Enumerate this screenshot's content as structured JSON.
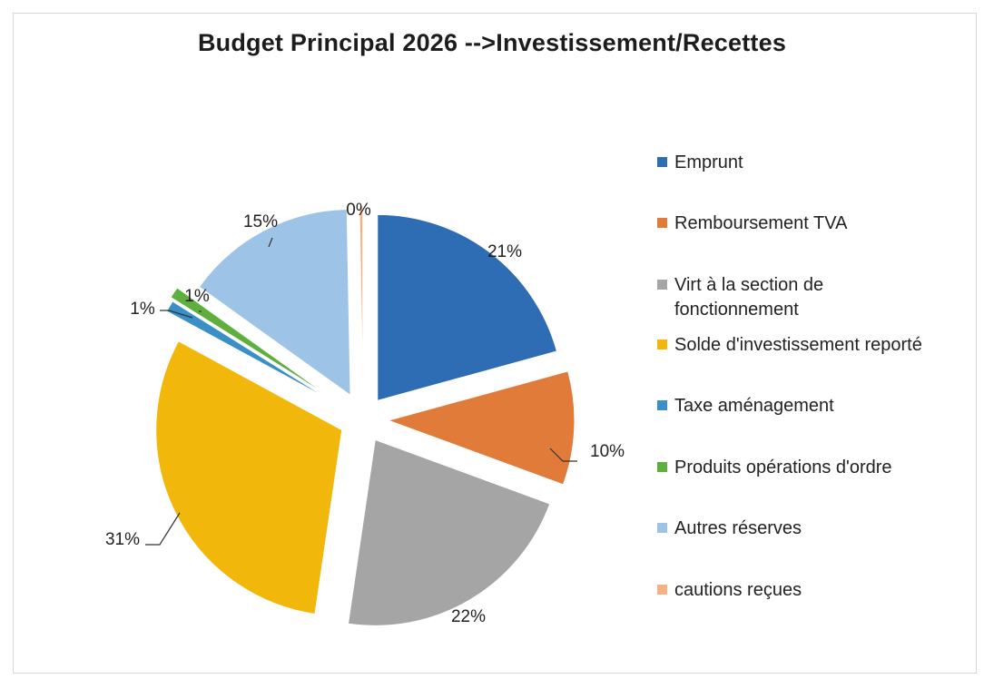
{
  "chart_data": {
    "type": "pie",
    "title": "Budget Principal 2026 -->Investissement/Recettes",
    "slices": [
      {
        "label": "Emprunt",
        "value": 21,
        "display": "21%",
        "color": "#2E6DB4"
      },
      {
        "label": "Remboursement TVA",
        "value": 10,
        "display": "10%",
        "color": "#E07B39"
      },
      {
        "label": "Virt à la section de fonctionnement",
        "value": 22,
        "display": "22%",
        "color": "#A5A5A5"
      },
      {
        "label": "Solde d'investissement reporté",
        "value": 31,
        "display": "31%",
        "color": "#F2B70B"
      },
      {
        "label": "Taxe aménagement",
        "value": 1,
        "display": "1%",
        "color": "#3A8FC9"
      },
      {
        "label": "Produits opérations d'ordre",
        "value": 1,
        "display": "1%",
        "color": "#5FAF3F"
      },
      {
        "label": "Autres réserves",
        "value": 15,
        "display": "15%",
        "color": "#9DC3E6"
      },
      {
        "label": "cautions reçues",
        "value": 0.3,
        "display": "0%",
        "color": "#F4B183"
      }
    ],
    "legend_position": "right",
    "exploded": true
  }
}
